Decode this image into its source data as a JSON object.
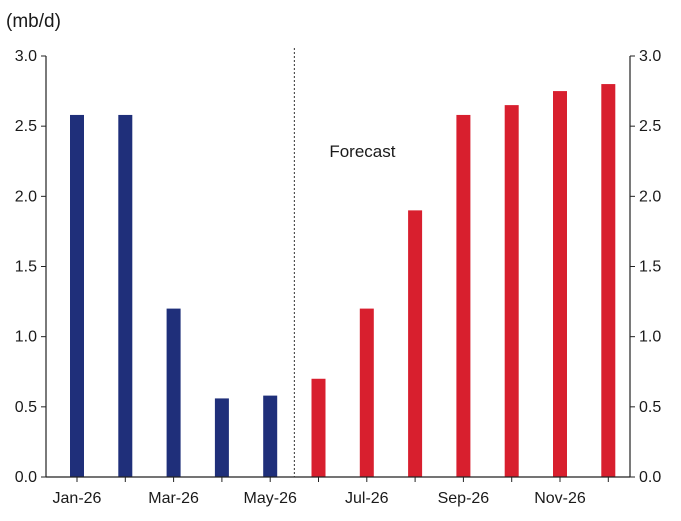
{
  "chart_data": {
    "type": "bar",
    "unit_label": "(mb/d)",
    "categories": [
      "Jan-26",
      "Feb-26",
      "Mar-26",
      "Apr-26",
      "May-26",
      "Jun-26",
      "Jul-26",
      "Aug-26",
      "Sep-26",
      "Oct-26",
      "Nov-26",
      "Dec-26"
    ],
    "x_tick_labels": [
      "Jan-26",
      "Mar-26",
      "May-26",
      "Jul-26",
      "Sep-26",
      "Nov-26"
    ],
    "values": [
      2.58,
      2.58,
      1.2,
      0.56,
      0.58,
      0.7,
      1.2,
      1.9,
      2.58,
      2.65,
      2.75,
      2.8
    ],
    "forecast_start_index": 5,
    "annotation": "Forecast",
    "ylim": [
      0,
      3.0
    ],
    "y_ticks": [
      "0.0",
      "0.5",
      "1.0",
      "1.5",
      "2.0",
      "2.5",
      "3.0"
    ],
    "colors": {
      "actual": "#1f2f7a",
      "forecast": "#d81f2e"
    },
    "grid": false
  }
}
